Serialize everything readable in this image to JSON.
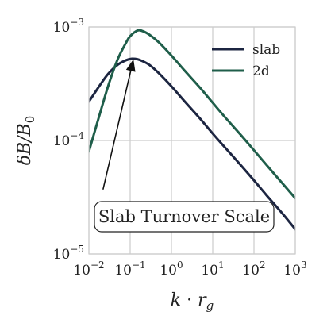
{
  "chart_data": {
    "type": "line",
    "title": "",
    "xlabel": "k · r_g",
    "ylabel": "δB/B_0",
    "xscale": "log",
    "yscale": "log",
    "xlim": [
      0.01,
      1000
    ],
    "ylim": [
      1e-05,
      0.001
    ],
    "grid": true,
    "legend_placement": "top-right",
    "x_ticks": [
      {
        "base": "10",
        "exp": "−2",
        "value": 0.01
      },
      {
        "base": "10",
        "exp": "−1",
        "value": 0.1
      },
      {
        "base": "10",
        "exp": "0",
        "value": 1
      },
      {
        "base": "10",
        "exp": "1",
        "value": 10
      },
      {
        "base": "10",
        "exp": "2",
        "value": 100
      },
      {
        "base": "10",
        "exp": "3",
        "value": 1000
      }
    ],
    "y_ticks": [
      {
        "base": "10",
        "exp": "−5",
        "value": 1e-05
      },
      {
        "base": "10",
        "exp": "−4",
        "value": 0.0001
      },
      {
        "base": "10",
        "exp": "−3",
        "value": 0.001
      }
    ],
    "series": [
      {
        "name": "slab",
        "color": "#1c2541",
        "x": [
          0.01,
          0.02,
          0.03,
          0.05,
          0.08,
          0.11,
          0.15,
          0.2,
          0.3,
          0.5,
          1,
          2,
          5,
          10,
          20,
          50,
          100,
          200,
          500,
          1000
        ],
        "y": [
          0.00022,
          0.00032,
          0.00039,
          0.000465,
          0.00051,
          0.000525,
          0.00052,
          0.0005,
          0.00046,
          0.00039,
          0.0003,
          0.000225,
          0.000155,
          0.000115,
          8.65e-05,
          5.95e-05,
          4.45e-05,
          3.3e-05,
          2.25e-05,
          1.65e-05
        ]
      },
      {
        "name": "2d",
        "color": "#1f5e4a",
        "x": [
          0.01,
          0.02,
          0.03,
          0.05,
          0.08,
          0.1,
          0.15,
          0.2,
          0.3,
          0.5,
          1,
          2,
          5,
          10,
          20,
          50,
          100,
          200,
          500,
          1000
        ],
        "y": [
          8e-05,
          0.00019,
          0.00031,
          0.00052,
          0.00073,
          0.00083,
          0.00093,
          0.00092,
          0.00085,
          0.00073,
          0.00056,
          0.00042,
          0.00029,
          0.000215,
          0.00016,
          0.00011,
          8.2e-05,
          6.1e-05,
          4.15e-05,
          3.1e-05
        ]
      }
    ],
    "annotation": {
      "text": "Slab Turnover Scale",
      "arrow_tail": {
        "x": 0.022,
        "y": 3.7e-05
      },
      "arrow_head": {
        "x": 0.12,
        "y": 0.00052
      }
    }
  }
}
